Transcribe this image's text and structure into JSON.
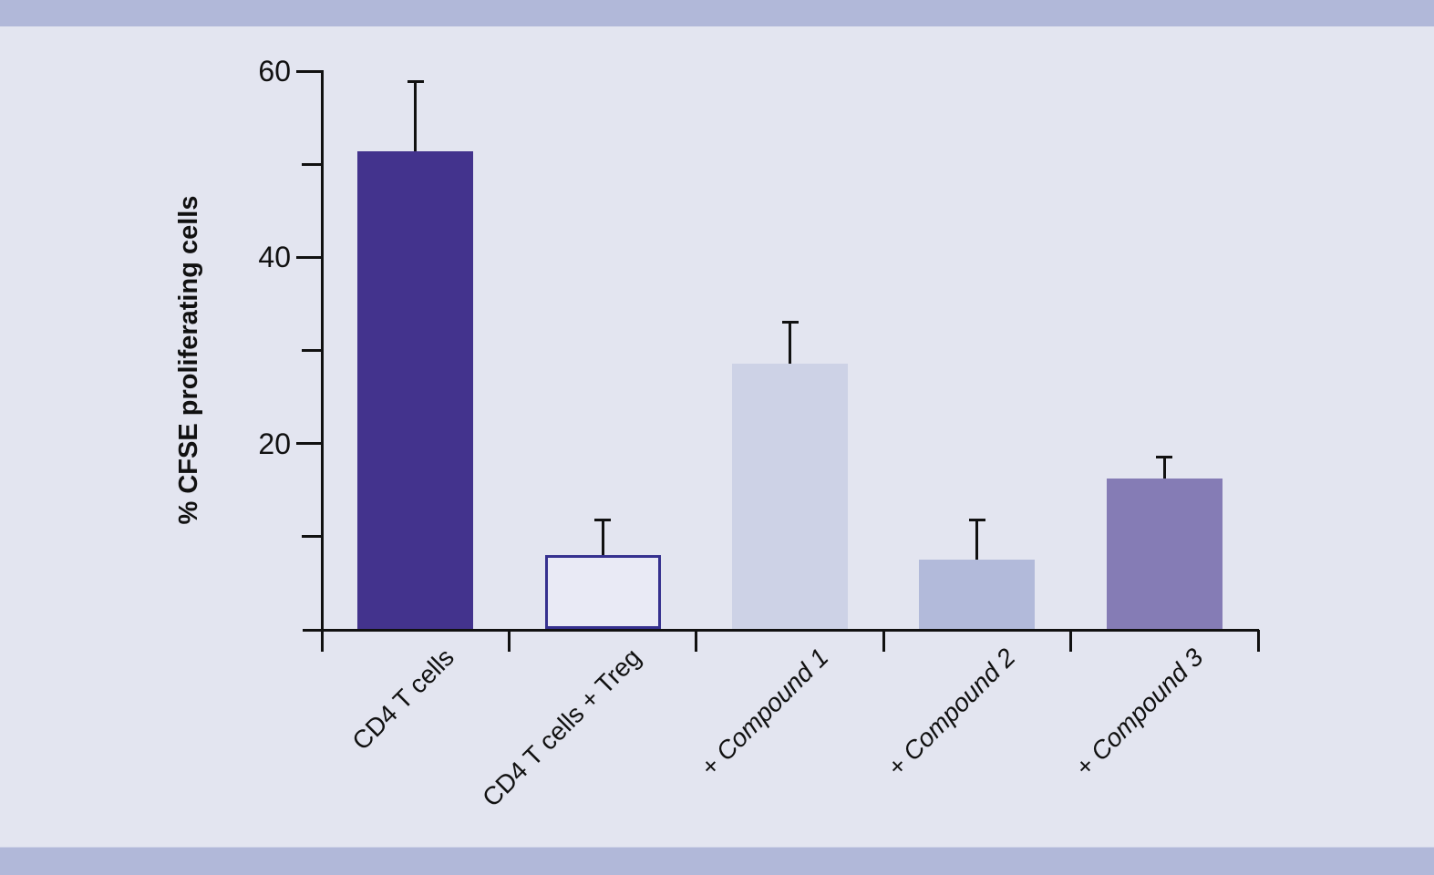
{
  "colors": {
    "background": "#e3e5f0",
    "band": "#b1b8d9",
    "axis": "#111111",
    "text": "#111111"
  },
  "chart_data": {
    "type": "bar",
    "title": "",
    "xlabel": "",
    "ylabel": "% CFSE proliferating cells",
    "categories": [
      "CD4 T cells",
      "CD4 T cells + Treg",
      "+ Compound 1",
      "+ Compound 2",
      "+ Compound 3"
    ],
    "values": [
      51.4,
      8.0,
      28.6,
      7.5,
      16.2
    ],
    "errors_up": [
      7.3,
      3.6,
      4.3,
      4.1,
      2.2
    ],
    "ylim": [
      0,
      60
    ],
    "yticks_labeled": [
      20,
      40,
      60
    ],
    "yticks_minor": [
      10,
      30,
      50
    ],
    "grid": false,
    "legend": "none",
    "category_label_rotation_deg": -45,
    "category_italic": [
      false,
      false,
      true,
      true,
      true
    ],
    "bar_styles": [
      {
        "fill": "#43338d",
        "stroke": "none"
      },
      {
        "fill": "#e9eaf5",
        "stroke": "#36318f"
      },
      {
        "fill": "#cdd2e6",
        "stroke": "none"
      },
      {
        "fill": "#b2bada",
        "stroke": "none"
      },
      {
        "fill": "#857cb5",
        "stroke": "none"
      }
    ]
  }
}
